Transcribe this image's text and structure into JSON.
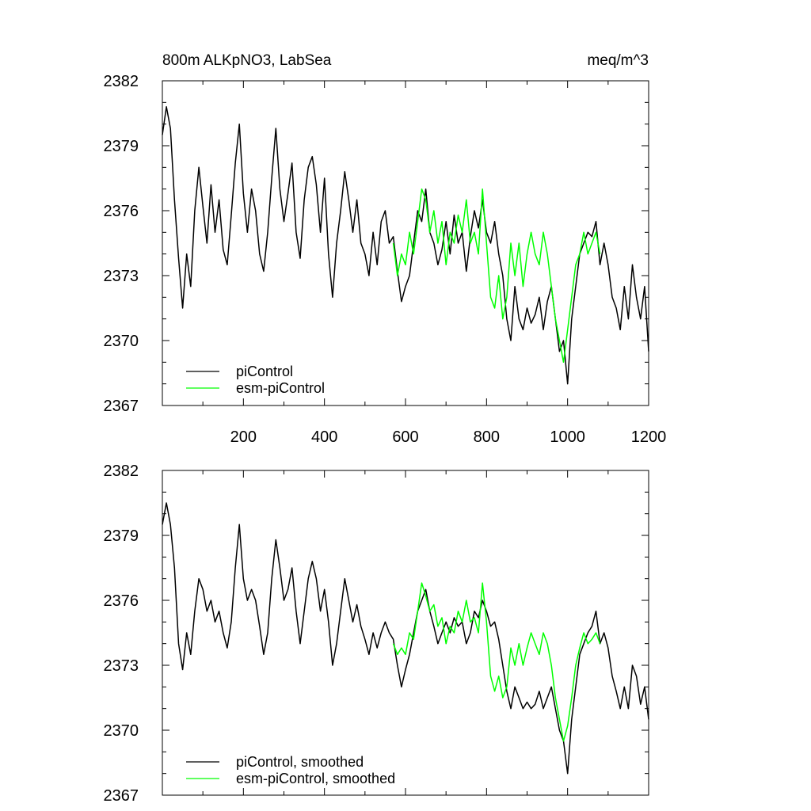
{
  "chart_data": [
    {
      "type": "line",
      "title": "800m ALKpNO3, LabSea",
      "units": "meq/m^3",
      "xlabel": "",
      "ylabel": "",
      "xlim": [
        0,
        1200
      ],
      "ylim": [
        2367,
        2382
      ],
      "xticks": [
        200,
        400,
        600,
        800,
        1000,
        1200
      ],
      "yticks": [
        2367,
        2370,
        2373,
        2376,
        2379,
        2382
      ],
      "grid": false,
      "legend_position": "bottom-left",
      "series": [
        {
          "name": "piControl",
          "color": "#000000",
          "x": [
            0,
            10,
            20,
            30,
            40,
            50,
            60,
            70,
            80,
            90,
            100,
            110,
            120,
            130,
            140,
            150,
            160,
            170,
            180,
            190,
            200,
            210,
            220,
            230,
            240,
            250,
            260,
            270,
            280,
            290,
            300,
            310,
            320,
            330,
            340,
            350,
            360,
            370,
            380,
            390,
            400,
            410,
            420,
            430,
            440,
            450,
            460,
            470,
            480,
            490,
            500,
            510,
            520,
            530,
            540,
            550,
            560,
            570,
            580,
            590,
            600,
            610,
            620,
            630,
            640,
            650,
            660,
            670,
            680,
            690,
            700,
            710,
            720,
            730,
            740,
            750,
            760,
            770,
            780,
            790,
            800,
            810,
            820,
            830,
            840,
            850,
            860,
            870,
            880,
            890,
            900,
            910,
            920,
            930,
            940,
            950,
            960,
            970,
            980,
            990,
            1000,
            1010,
            1020,
            1030,
            1040,
            1050,
            1060,
            1070,
            1080,
            1090,
            1100,
            1110,
            1120,
            1130,
            1140,
            1150,
            1160,
            1170,
            1180,
            1190,
            1200
          ],
          "values": [
            2379.5,
            2380.8,
            2379.8,
            2376.5,
            2373.8,
            2371.5,
            2374.0,
            2372.5,
            2376.0,
            2378.0,
            2376.2,
            2374.5,
            2377.2,
            2375.0,
            2376.5,
            2374.2,
            2373.5,
            2375.8,
            2378.2,
            2380.0,
            2376.8,
            2375.0,
            2377.0,
            2376.0,
            2374.0,
            2373.2,
            2375.0,
            2377.5,
            2379.8,
            2377.0,
            2375.5,
            2376.8,
            2378.2,
            2375.0,
            2373.8,
            2376.5,
            2378.0,
            2378.5,
            2377.2,
            2375.0,
            2377.5,
            2374.0,
            2372.0,
            2374.5,
            2376.0,
            2377.8,
            2376.5,
            2375.0,
            2376.5,
            2374.5,
            2374.0,
            2373.0,
            2375.0,
            2373.5,
            2375.5,
            2376.0,
            2374.5,
            2374.8,
            2373.2,
            2371.8,
            2372.5,
            2373.0,
            2374.5,
            2376.0,
            2375.5,
            2377.0,
            2375.0,
            2374.5,
            2373.5,
            2374.2,
            2375.5,
            2374.0,
            2375.8,
            2374.5,
            2375.0,
            2373.2,
            2374.8,
            2376.0,
            2375.2,
            2376.5,
            2375.0,
            2374.5,
            2375.5,
            2374.0,
            2373.0,
            2371.0,
            2370.0,
            2372.5,
            2371.0,
            2370.5,
            2371.5,
            2370.8,
            2371.2,
            2372.0,
            2370.5,
            2371.8,
            2372.5,
            2371.0,
            2369.5,
            2370.0,
            2368.0,
            2371.0,
            2372.5,
            2374.0,
            2374.5,
            2375.0,
            2374.8,
            2375.5,
            2373.5,
            2374.5,
            2373.5,
            2372.0,
            2371.5,
            2370.5,
            2372.5,
            2371.0,
            2373.5,
            2372.0,
            2371.0,
            2372.5,
            2369.5
          ]
        },
        {
          "name": "esm-piControl",
          "color": "#00ff00",
          "x": [
            570,
            580,
            590,
            600,
            610,
            620,
            630,
            640,
            650,
            660,
            670,
            680,
            690,
            700,
            710,
            720,
            730,
            740,
            750,
            760,
            770,
            780,
            790,
            800,
            810,
            820,
            830,
            840,
            850,
            860,
            870,
            880,
            890,
            900,
            910,
            920,
            930,
            940,
            950,
            960,
            970,
            980,
            990,
            1000,
            1010,
            1020,
            1030,
            1040,
            1050,
            1060,
            1070,
            1080
          ],
          "values": [
            2374.5,
            2373.0,
            2374.0,
            2373.5,
            2375.0,
            2374.0,
            2375.5,
            2377.0,
            2376.5,
            2375.0,
            2376.0,
            2374.5,
            2375.5,
            2373.5,
            2375.0,
            2374.5,
            2375.8,
            2375.0,
            2376.5,
            2374.5,
            2375.0,
            2374.0,
            2377.0,
            2374.5,
            2372.0,
            2371.5,
            2373.0,
            2371.0,
            2372.0,
            2374.5,
            2373.0,
            2374.5,
            2372.5,
            2374.0,
            2375.0,
            2374.0,
            2373.5,
            2375.0,
            2374.0,
            2372.5,
            2371.0,
            2370.0,
            2369.0,
            2370.5,
            2372.0,
            2373.5,
            2374.0,
            2375.0,
            2374.0,
            2374.5,
            2375.0,
            2374.0
          ]
        }
      ]
    },
    {
      "type": "line",
      "title": "",
      "xlabel": "",
      "ylabel": "",
      "xlim": [
        0,
        1200
      ],
      "ylim": [
        2367,
        2382
      ],
      "xticks": [
        200,
        400,
        600,
        800,
        1000,
        1200
      ],
      "yticks": [
        2367,
        2370,
        2373,
        2376,
        2379,
        2382
      ],
      "grid": false,
      "legend_position": "bottom-left",
      "series": [
        {
          "name": "piControl, smoothed",
          "color": "#000000",
          "x": [
            0,
            10,
            20,
            30,
            40,
            50,
            60,
            70,
            80,
            90,
            100,
            110,
            120,
            130,
            140,
            150,
            160,
            170,
            180,
            190,
            200,
            210,
            220,
            230,
            240,
            250,
            260,
            270,
            280,
            290,
            300,
            310,
            320,
            330,
            340,
            350,
            360,
            370,
            380,
            390,
            400,
            410,
            420,
            430,
            440,
            450,
            460,
            470,
            480,
            490,
            500,
            510,
            520,
            530,
            540,
            550,
            560,
            570,
            580,
            590,
            600,
            610,
            620,
            630,
            640,
            650,
            660,
            670,
            680,
            690,
            700,
            710,
            720,
            730,
            740,
            750,
            760,
            770,
            780,
            790,
            800,
            810,
            820,
            830,
            840,
            850,
            860,
            870,
            880,
            890,
            900,
            910,
            920,
            930,
            940,
            950,
            960,
            970,
            980,
            990,
            1000,
            1010,
            1020,
            1030,
            1040,
            1050,
            1060,
            1070,
            1080,
            1090,
            1100,
            1110,
            1120,
            1130,
            1140,
            1150,
            1160,
            1170,
            1180,
            1190,
            1200
          ],
          "values": [
            2379.5,
            2380.5,
            2379.5,
            2377.5,
            2374.0,
            2372.8,
            2374.5,
            2373.5,
            2375.5,
            2377.0,
            2376.5,
            2375.5,
            2376.0,
            2375.0,
            2375.5,
            2374.5,
            2373.8,
            2375.0,
            2377.5,
            2379.5,
            2377.0,
            2376.0,
            2376.5,
            2376.0,
            2374.8,
            2373.5,
            2374.5,
            2377.0,
            2378.8,
            2377.5,
            2376.0,
            2376.5,
            2377.5,
            2375.5,
            2374.0,
            2375.5,
            2377.0,
            2377.8,
            2377.0,
            2375.5,
            2376.5,
            2375.0,
            2373.0,
            2374.0,
            2375.5,
            2377.0,
            2376.0,
            2375.0,
            2375.8,
            2374.8,
            2374.2,
            2373.5,
            2374.5,
            2373.8,
            2374.5,
            2375.0,
            2374.5,
            2374.2,
            2373.0,
            2372.0,
            2372.8,
            2373.5,
            2374.5,
            2375.5,
            2376.0,
            2376.5,
            2375.5,
            2374.8,
            2374.0,
            2374.5,
            2375.0,
            2374.5,
            2375.2,
            2374.8,
            2375.0,
            2374.0,
            2374.5,
            2375.5,
            2375.2,
            2376.0,
            2375.5,
            2374.8,
            2375.0,
            2374.2,
            2373.0,
            2371.8,
            2371.0,
            2372.0,
            2371.5,
            2371.0,
            2371.3,
            2371.0,
            2371.2,
            2371.8,
            2371.0,
            2371.5,
            2372.0,
            2371.0,
            2370.0,
            2369.5,
            2368.0,
            2370.5,
            2372.0,
            2373.5,
            2374.0,
            2374.5,
            2374.8,
            2375.5,
            2374.0,
            2374.5,
            2373.8,
            2372.5,
            2371.8,
            2371.0,
            2372.0,
            2371.0,
            2373.0,
            2372.5,
            2371.2,
            2372.0,
            2370.5
          ]
        },
        {
          "name": "esm-piControl, smoothed",
          "color": "#00ff00",
          "x": [
            570,
            580,
            590,
            600,
            610,
            620,
            630,
            640,
            650,
            660,
            670,
            680,
            690,
            700,
            710,
            720,
            730,
            740,
            750,
            760,
            770,
            780,
            790,
            800,
            810,
            820,
            830,
            840,
            850,
            860,
            870,
            880,
            890,
            900,
            910,
            920,
            930,
            940,
            950,
            960,
            970,
            980,
            990,
            1000,
            1010,
            1020,
            1030,
            1040,
            1050,
            1060,
            1070,
            1080
          ],
          "values": [
            2374.0,
            2373.5,
            2373.8,
            2373.5,
            2374.5,
            2374.2,
            2375.5,
            2376.8,
            2376.2,
            2375.5,
            2375.8,
            2374.8,
            2375.2,
            2374.0,
            2374.8,
            2374.5,
            2375.5,
            2375.0,
            2376.0,
            2375.0,
            2375.2,
            2374.5,
            2376.8,
            2375.0,
            2372.5,
            2371.8,
            2372.5,
            2371.5,
            2372.0,
            2373.8,
            2373.0,
            2374.0,
            2373.0,
            2373.8,
            2374.5,
            2374.0,
            2373.5,
            2374.5,
            2374.0,
            2373.0,
            2371.5,
            2370.5,
            2369.5,
            2370.2,
            2371.5,
            2373.0,
            2373.8,
            2374.5,
            2374.0,
            2374.2,
            2374.5,
            2374.0
          ]
        }
      ]
    }
  ]
}
